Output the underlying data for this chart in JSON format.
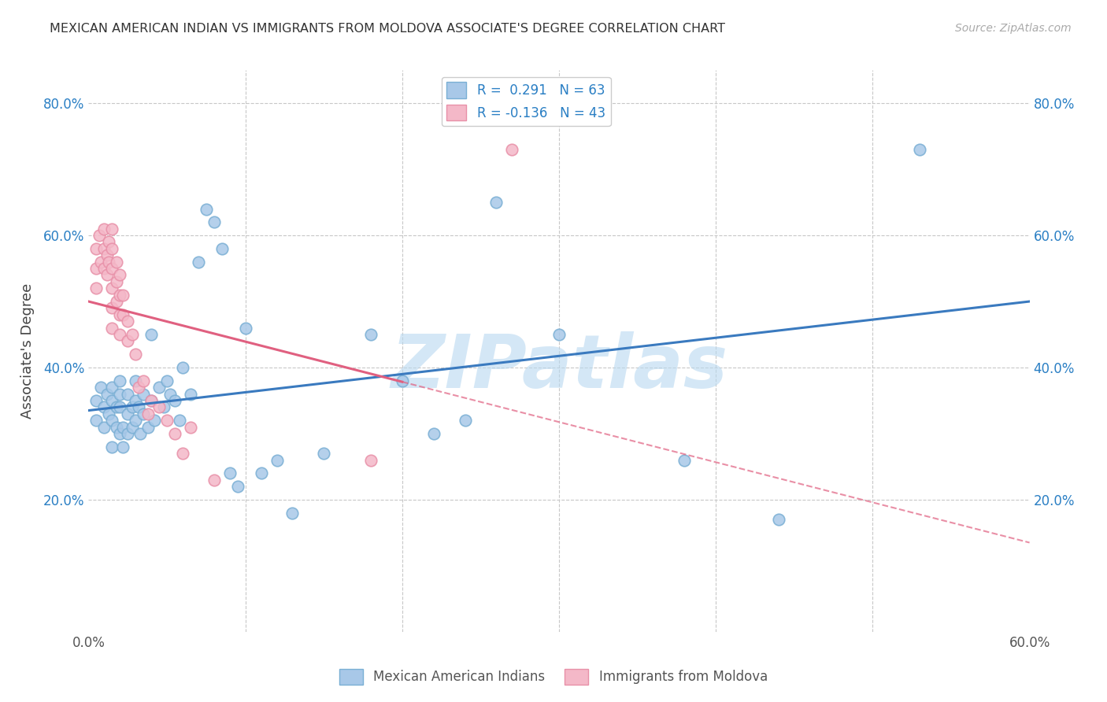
{
  "title": "MEXICAN AMERICAN INDIAN VS IMMIGRANTS FROM MOLDOVA ASSOCIATE'S DEGREE CORRELATION CHART",
  "source": "Source: ZipAtlas.com",
  "ylabel": "Associate's Degree",
  "xlim": [
    0.0,
    0.6
  ],
  "ylim": [
    0.0,
    0.85
  ],
  "legend1_R": "0.291",
  "legend1_N": "63",
  "legend2_R": "-0.136",
  "legend2_N": "43",
  "blue_color": "#a8c8e8",
  "blue_edge_color": "#7aafd4",
  "pink_color": "#f4b8c8",
  "pink_edge_color": "#e890a8",
  "blue_line_color": "#3a7abf",
  "pink_line_color": "#e06080",
  "watermark": "ZIPatlas",
  "watermark_color": "#b8d8f0",
  "blue_line_start_y": 0.335,
  "blue_line_end_y": 0.5,
  "pink_line_start_y": 0.5,
  "pink_line_end_y": 0.135,
  "blue_scatter_x": [
    0.005,
    0.005,
    0.008,
    0.01,
    0.01,
    0.012,
    0.013,
    0.015,
    0.015,
    0.015,
    0.015,
    0.018,
    0.018,
    0.02,
    0.02,
    0.02,
    0.02,
    0.022,
    0.022,
    0.025,
    0.025,
    0.025,
    0.028,
    0.028,
    0.03,
    0.03,
    0.03,
    0.032,
    0.033,
    0.035,
    0.035,
    0.038,
    0.04,
    0.04,
    0.042,
    0.045,
    0.048,
    0.05,
    0.052,
    0.055,
    0.058,
    0.06,
    0.065,
    0.07,
    0.075,
    0.08,
    0.085,
    0.09,
    0.095,
    0.1,
    0.11,
    0.12,
    0.13,
    0.15,
    0.18,
    0.2,
    0.22,
    0.24,
    0.26,
    0.3,
    0.38,
    0.44,
    0.53
  ],
  "blue_scatter_y": [
    0.35,
    0.32,
    0.37,
    0.34,
    0.31,
    0.36,
    0.33,
    0.35,
    0.32,
    0.37,
    0.28,
    0.34,
    0.31,
    0.36,
    0.38,
    0.34,
    0.3,
    0.31,
    0.28,
    0.36,
    0.33,
    0.3,
    0.34,
    0.31,
    0.38,
    0.35,
    0.32,
    0.34,
    0.3,
    0.36,
    0.33,
    0.31,
    0.45,
    0.35,
    0.32,
    0.37,
    0.34,
    0.38,
    0.36,
    0.35,
    0.32,
    0.4,
    0.36,
    0.56,
    0.64,
    0.62,
    0.58,
    0.24,
    0.22,
    0.46,
    0.24,
    0.26,
    0.18,
    0.27,
    0.45,
    0.38,
    0.3,
    0.32,
    0.65,
    0.45,
    0.26,
    0.17,
    0.73
  ],
  "pink_scatter_x": [
    0.005,
    0.005,
    0.005,
    0.007,
    0.008,
    0.01,
    0.01,
    0.01,
    0.012,
    0.012,
    0.013,
    0.013,
    0.015,
    0.015,
    0.015,
    0.015,
    0.015,
    0.015,
    0.018,
    0.018,
    0.018,
    0.02,
    0.02,
    0.02,
    0.02,
    0.022,
    0.022,
    0.025,
    0.025,
    0.028,
    0.03,
    0.032,
    0.035,
    0.038,
    0.04,
    0.045,
    0.05,
    0.055,
    0.06,
    0.065,
    0.08,
    0.18,
    0.27
  ],
  "pink_scatter_y": [
    0.58,
    0.55,
    0.52,
    0.6,
    0.56,
    0.61,
    0.58,
    0.55,
    0.57,
    0.54,
    0.59,
    0.56,
    0.61,
    0.58,
    0.55,
    0.52,
    0.49,
    0.46,
    0.56,
    0.53,
    0.5,
    0.54,
    0.51,
    0.48,
    0.45,
    0.51,
    0.48,
    0.47,
    0.44,
    0.45,
    0.42,
    0.37,
    0.38,
    0.33,
    0.35,
    0.34,
    0.32,
    0.3,
    0.27,
    0.31,
    0.23,
    0.26,
    0.73
  ]
}
